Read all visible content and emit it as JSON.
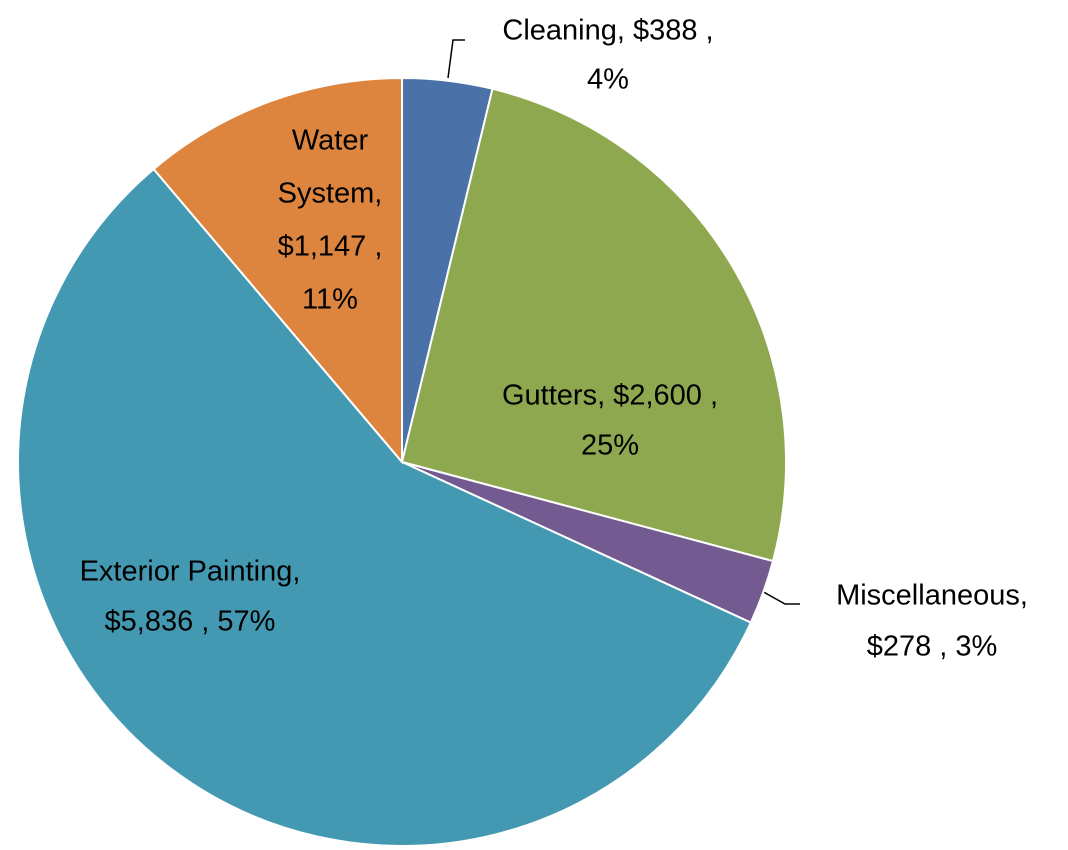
{
  "chart_data": {
    "type": "pie",
    "values": [
      388,
      2600,
      278,
      5836,
      1147
    ],
    "value_labels": [
      [
        "Cleaning,  $388 ,",
        "4%"
      ],
      [
        "Gutters,  $2,600 ,",
        "25%"
      ],
      [
        "Miscellaneous,",
        "$278 , 3%"
      ],
      [
        "Exterior Painting,",
        "$5,836 , 57%"
      ],
      [
        "Water",
        "System,",
        "$1,147 ,",
        "11%"
      ]
    ],
    "colors": [
      "#4a72a8",
      "#8ea84f",
      "#735a91",
      "#4399b1",
      "#dd853f"
    ]
  }
}
